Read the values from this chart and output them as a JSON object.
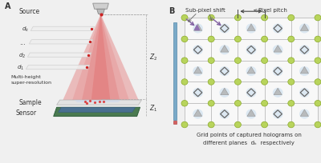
{
  "panel_a_label": "A",
  "panel_b_label": "B",
  "bg_color": "#f0f0f0",
  "sub_pixel_label": "Sub-pixel shift",
  "pixel_pitch_label": "Pixel pitch",
  "grid_caption_1": "Grid points of captured holograms on",
  "grid_caption_2": "different planes  dₖ  respectively",
  "z2_label": "Z₂",
  "z1_label": "Z₁",
  "green_dot_color": "#b8d45c",
  "green_dot_edge": "#8aaa2a",
  "triangle_color": "#b0b0b0",
  "triangle_edge": "#888888",
  "diamond_edge": "#666666",
  "circle_light": "#c5dcee",
  "arrow_purple": "#8060a0",
  "grid_line_color": "#bbbbbb",
  "dashed_color": "#aaaaaa",
  "scale_bar_blue": "#7aaac8",
  "scale_bar_red": "#d46060",
  "source_gray": "#c8c8c8",
  "source_dark": "#999999",
  "cone_color": "#e05858",
  "sample_plate_color": "#cccccc",
  "sample_plate_edge": "#aaaaaa",
  "sensor_green": "#4a7a50",
  "sensor_blue": "#4a7090",
  "text_color": "#333333"
}
